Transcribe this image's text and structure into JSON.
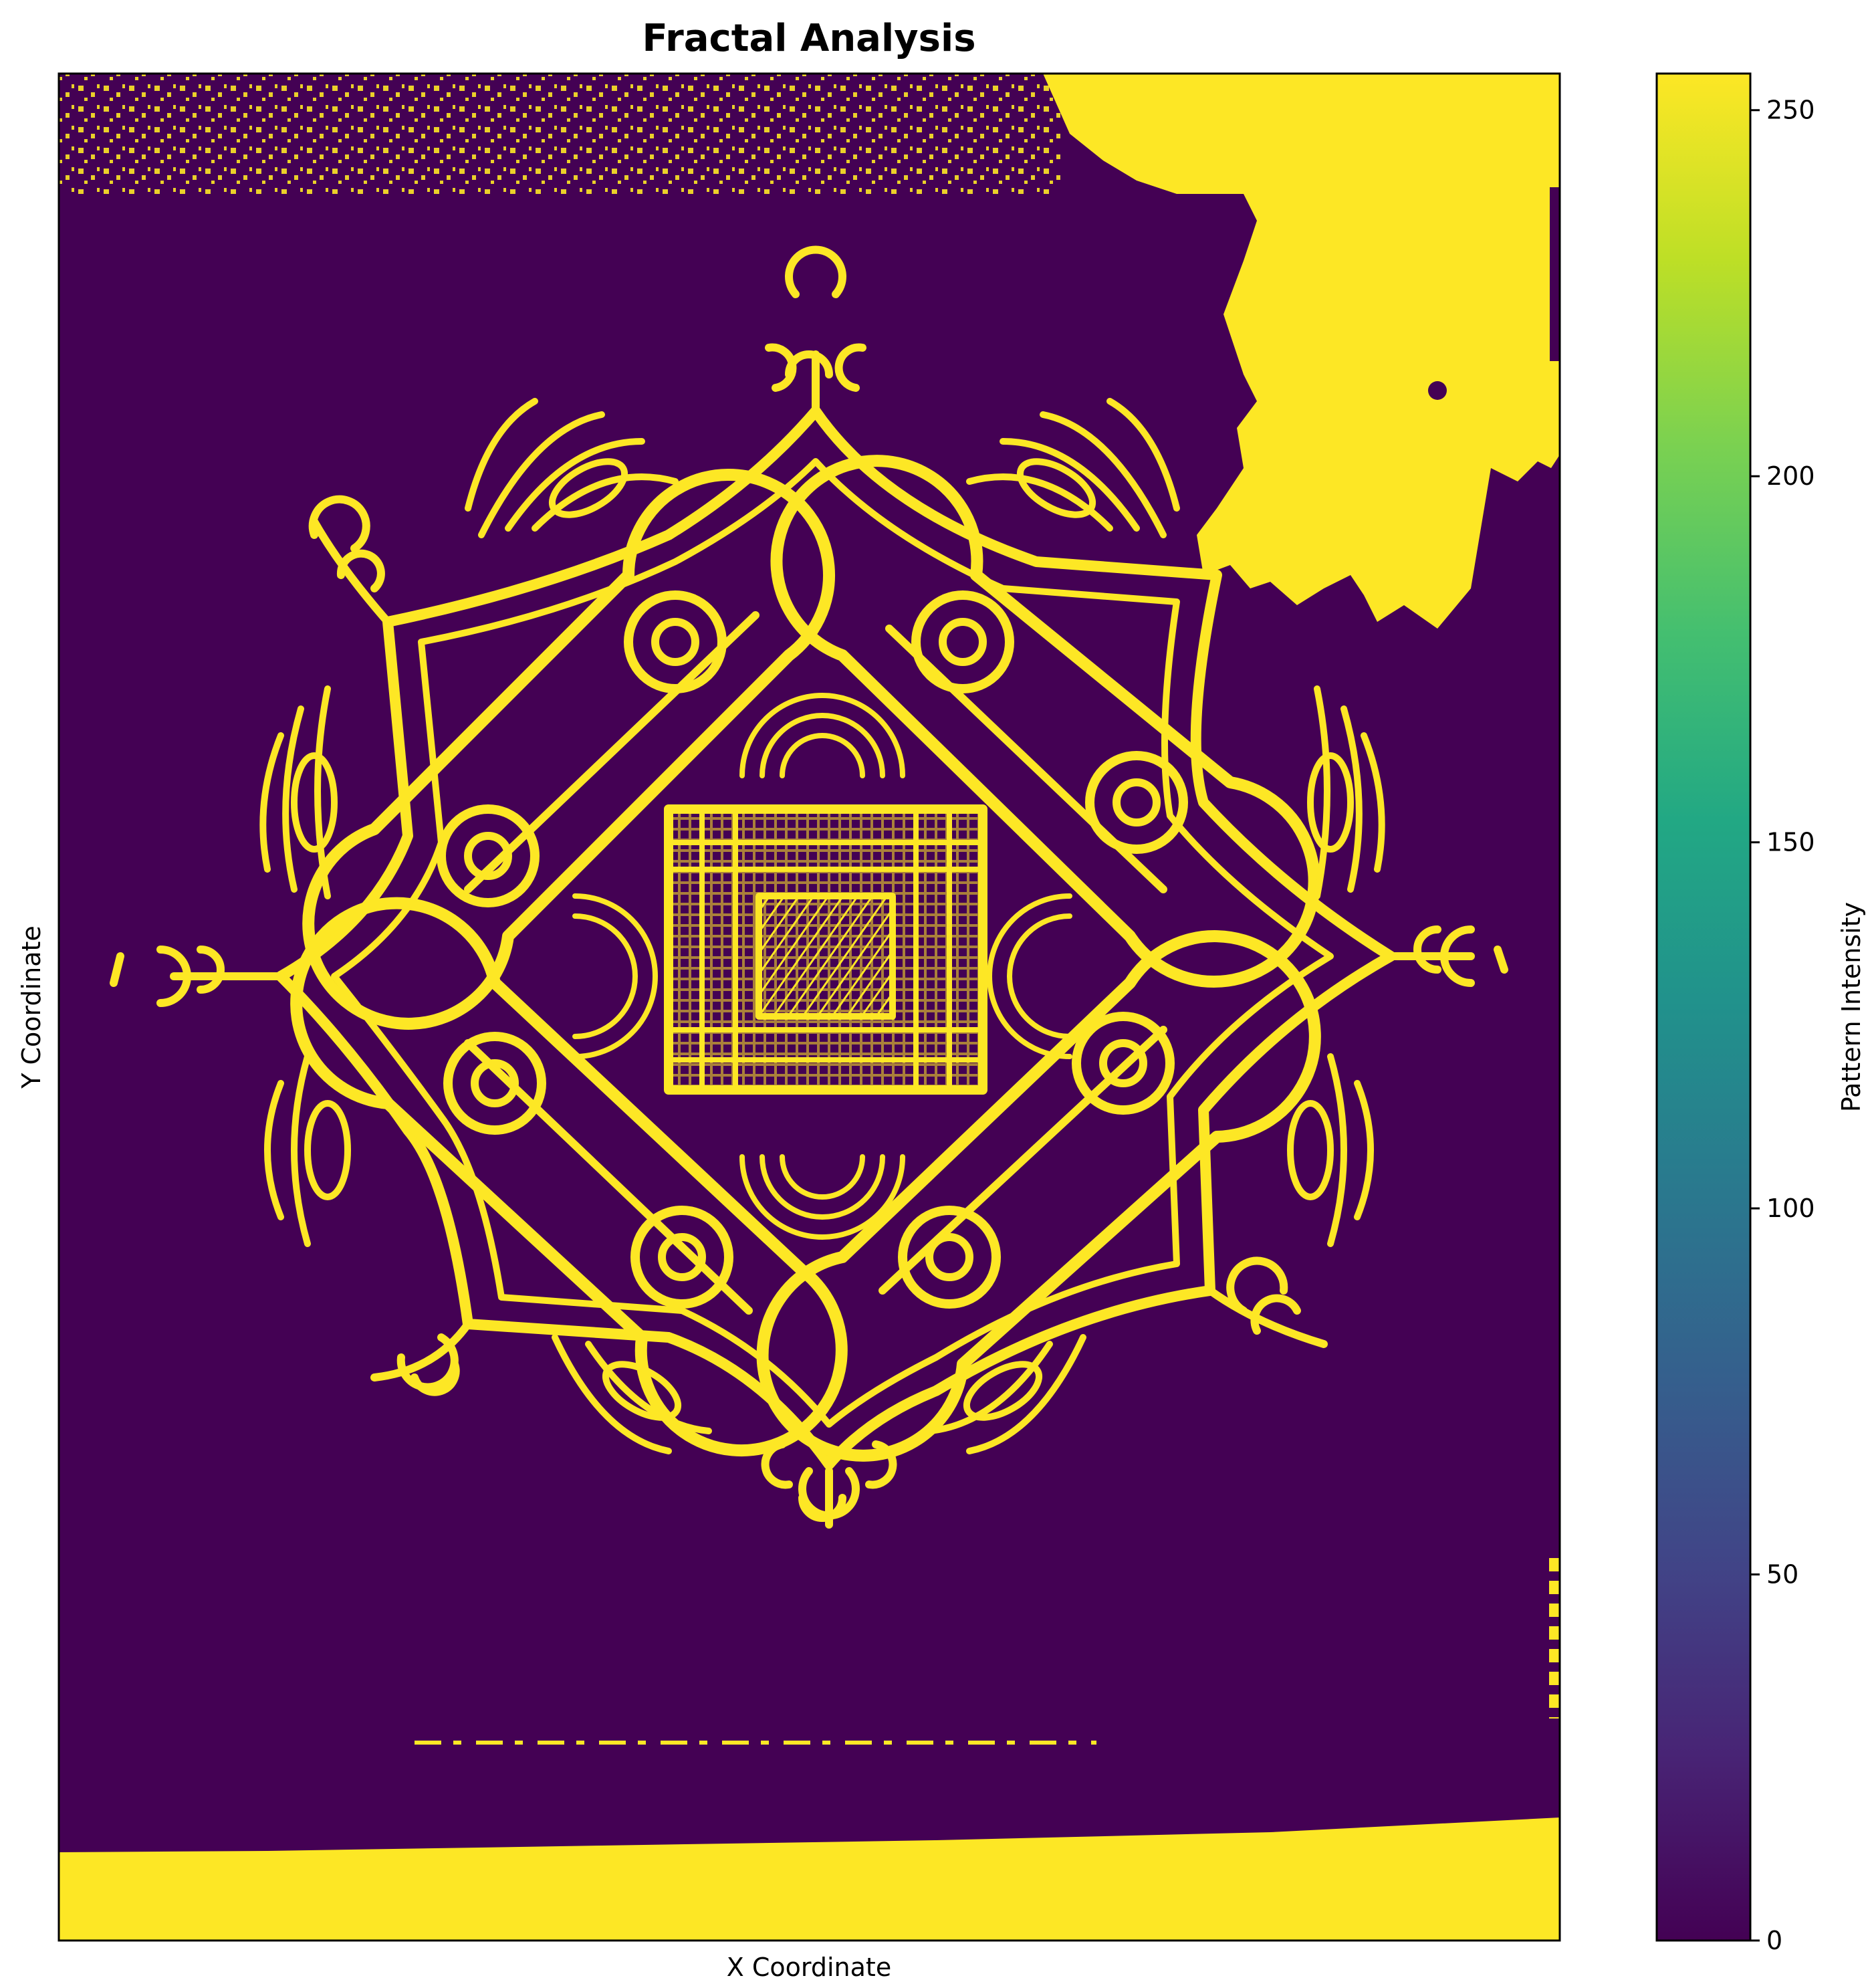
{
  "chart_data": {
    "type": "heatmap",
    "title": "Fractal Analysis",
    "xlabel": "X Coordinate",
    "ylabel": "Y Coordinate",
    "x_ticks_shown": false,
    "y_ticks_shown": false,
    "colormap": "viridis",
    "value_range": [
      0,
      255
    ],
    "binary_values_present": [
      0,
      255
    ],
    "colorbar": {
      "label": "Pattern Intensity",
      "ticks": [
        0,
        50,
        100,
        150,
        200,
        250
      ],
      "tick_labels": [
        "0",
        "50",
        "100",
        "150",
        "200",
        "250"
      ]
    },
    "colors": {
      "low": "#440154",
      "high": "#fde725"
    },
    "description_of_content": "Binary thresholded ornamental mandala pattern: four interlocking spiral loops around a central grid square, with floral motifs; noisy bright speckles along the top band, bright region at top-right, bright band along the bottom"
  }
}
